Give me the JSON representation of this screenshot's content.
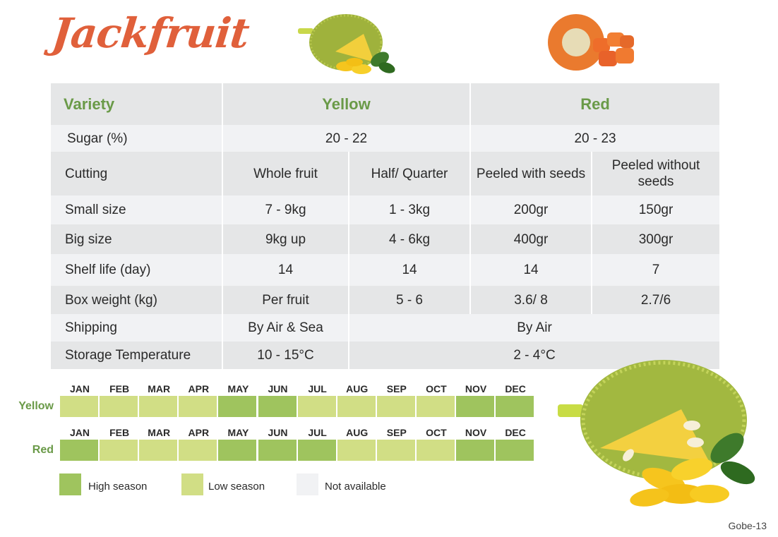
{
  "title": "Jackfruit",
  "table": {
    "header": {
      "label": "Variety",
      "yellow": "Yellow",
      "red": "Red"
    },
    "sugar": {
      "label": "Sugar (%)",
      "yellow": "20 - 22",
      "red": "20 - 23"
    },
    "cutting": {
      "label": "Cutting",
      "cols": [
        "Whole fruit",
        "Half/ Quarter",
        "Peeled with seeds",
        "Peeled without seeds"
      ]
    },
    "rows": [
      {
        "label": "Small size",
        "values": [
          "7 - 9kg",
          "1 - 3kg",
          "200gr",
          "150gr"
        ]
      },
      {
        "label": "Big size",
        "values": [
          "9kg up",
          "4 - 6kg",
          "400gr",
          "300gr"
        ]
      },
      {
        "label": "Shelf life (day)",
        "values": [
          "14",
          "14",
          "14",
          "7"
        ]
      },
      {
        "label": "Box weight (kg)",
        "values": [
          "Per fruit",
          "5 - 6",
          "3.6/ 8",
          "2.7/6"
        ]
      }
    ],
    "shipping": {
      "label": "Shipping",
      "yellow": "By Air & Sea",
      "rest": "By Air"
    },
    "storage": {
      "label": "Storage Temperature",
      "yellow": "10 - 15°C",
      "rest": "2 - 4°C"
    }
  },
  "season": {
    "months": [
      "JAN",
      "FEB",
      "MAR",
      "APR",
      "MAY",
      "JUN",
      "JUL",
      "AUG",
      "SEP",
      "OCT",
      "NOV",
      "DEC"
    ],
    "yellow": {
      "label": "Yellow",
      "status": [
        "low",
        "low",
        "low",
        "low",
        "high",
        "high",
        "low",
        "low",
        "low",
        "low",
        "high",
        "high"
      ]
    },
    "red": {
      "label": "Red",
      "status": [
        "high",
        "low",
        "low",
        "low",
        "high",
        "high",
        "high",
        "low",
        "low",
        "low",
        "high",
        "high"
      ]
    }
  },
  "legend": [
    {
      "key": "high",
      "label": "High season",
      "color": "#9fc45e"
    },
    {
      "key": "low",
      "label": "Low season",
      "color": "#d1de85"
    },
    {
      "key": "na",
      "label": "Not available",
      "color": "#f1f2f4"
    }
  ],
  "colors": {
    "title": "#e0603b",
    "accent_green": "#6a9a48"
  },
  "images": {
    "top_yellow": "yellow-jackfruit-image",
    "top_red": "red-jackfruit-image",
    "bottom": "whole-jackfruit-image"
  },
  "footer": "Gobe-13"
}
